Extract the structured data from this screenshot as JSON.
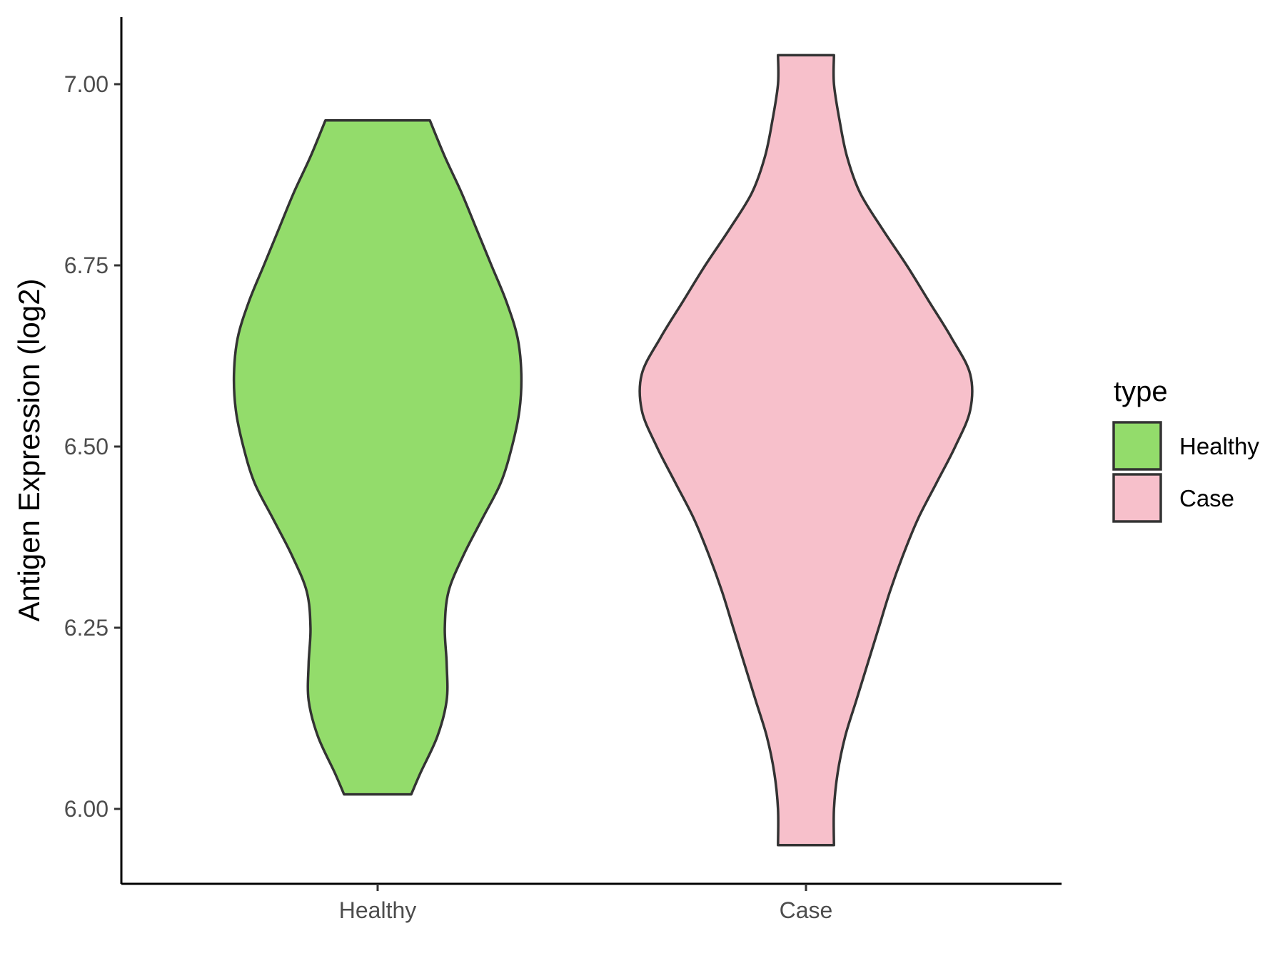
{
  "chart_data": {
    "type": "violin",
    "categories": [
      "Healthy",
      "Case"
    ],
    "ylabel": "Antigen Expression (log2)",
    "xlabel": "",
    "ylim": [
      5.9,
      7.1
    ],
    "yticks": [
      "6.00",
      "6.25",
      "6.50",
      "6.75",
      "7.00"
    ],
    "ytick_values": [
      6.0,
      6.25,
      6.5,
      6.75,
      7.0
    ],
    "grid": false,
    "legend": {
      "title": "type",
      "position": "right",
      "entries": [
        {
          "label": "Healthy",
          "color": "#93dc6b"
        },
        {
          "label": "Case",
          "color": "#f7c0cb"
        }
      ]
    },
    "series": [
      {
        "category": "Healthy",
        "color": "#93dc6b",
        "y_min": 6.02,
        "y_max": 6.95,
        "density_profile": [
          [
            6.02,
            0.18
          ],
          [
            6.05,
            0.23
          ],
          [
            6.1,
            0.32
          ],
          [
            6.15,
            0.37
          ],
          [
            6.2,
            0.37
          ],
          [
            6.25,
            0.36
          ],
          [
            6.3,
            0.38
          ],
          [
            6.35,
            0.46
          ],
          [
            6.4,
            0.56
          ],
          [
            6.45,
            0.66
          ],
          [
            6.5,
            0.72
          ],
          [
            6.55,
            0.76
          ],
          [
            6.6,
            0.77
          ],
          [
            6.65,
            0.75
          ],
          [
            6.7,
            0.69
          ],
          [
            6.75,
            0.61
          ],
          [
            6.8,
            0.53
          ],
          [
            6.85,
            0.45
          ],
          [
            6.9,
            0.36
          ],
          [
            6.95,
            0.28
          ]
        ]
      },
      {
        "category": "Case",
        "color": "#f7c0cb",
        "y_min": 5.95,
        "y_max": 7.04,
        "density_profile": [
          [
            5.95,
            0.15
          ],
          [
            6.0,
            0.15
          ],
          [
            6.05,
            0.17
          ],
          [
            6.1,
            0.21
          ],
          [
            6.15,
            0.27
          ],
          [
            6.2,
            0.33
          ],
          [
            6.25,
            0.39
          ],
          [
            6.3,
            0.45
          ],
          [
            6.35,
            0.52
          ],
          [
            6.4,
            0.6
          ],
          [
            6.45,
            0.7
          ],
          [
            6.5,
            0.8
          ],
          [
            6.55,
            0.88
          ],
          [
            6.6,
            0.88
          ],
          [
            6.65,
            0.78
          ],
          [
            6.7,
            0.66
          ],
          [
            6.75,
            0.54
          ],
          [
            6.8,
            0.41
          ],
          [
            6.85,
            0.29
          ],
          [
            6.9,
            0.22
          ],
          [
            6.95,
            0.18
          ],
          [
            7.0,
            0.15
          ],
          [
            7.04,
            0.15
          ]
        ]
      }
    ]
  }
}
